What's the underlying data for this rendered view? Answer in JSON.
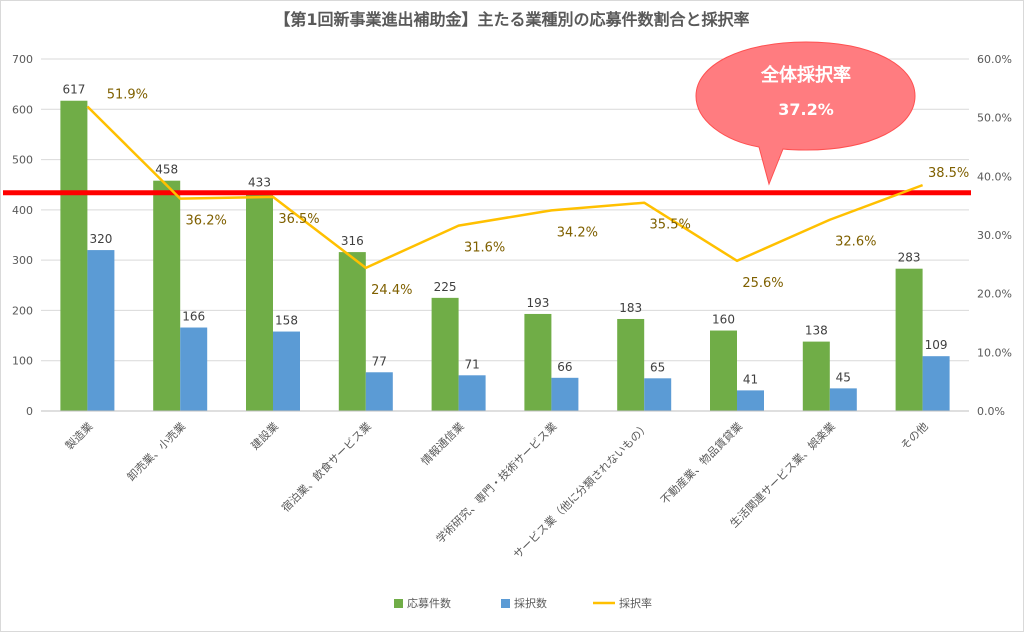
{
  "chart_data": {
    "type": "bar",
    "title": "【第1回新事業進出補助金】主たる業種別の応募件数割合と採択率",
    "categories": [
      "製造業",
      "卸売業、小売業",
      "建設業",
      "宿泊業、飲食サービス業",
      "情報通信業",
      "学術研究、専門・技術サービス業",
      "サービス業（他に分類されないもの）",
      "不動産業、物品賃貸業",
      "生活関連サービス業、娯楽業",
      "その他"
    ],
    "series": [
      {
        "name": "応募件数",
        "kind": "bar",
        "axis": "left",
        "color": "#70ad47",
        "values": [
          617,
          458,
          433,
          316,
          225,
          193,
          183,
          160,
          138,
          283
        ]
      },
      {
        "name": "採択数",
        "kind": "bar",
        "axis": "left",
        "color": "#5b9bd5",
        "values": [
          320,
          166,
          158,
          77,
          71,
          66,
          65,
          41,
          45,
          109
        ]
      },
      {
        "name": "採択率",
        "kind": "line",
        "axis": "right",
        "color": "#ffc000",
        "values": [
          51.9,
          36.2,
          36.5,
          24.4,
          31.6,
          34.2,
          35.5,
          25.6,
          32.6,
          38.5
        ],
        "labels": [
          "51.9%",
          "36.2%",
          "36.5%",
          "24.4%",
          "31.6%",
          "34.2%",
          "35.5%",
          "25.6%",
          "32.6%",
          "38.5%"
        ]
      }
    ],
    "ylim_left": [
      0,
      700
    ],
    "left_ticks": [
      "0",
      "100",
      "200",
      "300",
      "400",
      "500",
      "600",
      "700"
    ],
    "ylim_right": [
      0,
      60
    ],
    "right_ticks": [
      "0.0%",
      "10.0%",
      "20.0%",
      "30.0%",
      "40.0%",
      "50.0%",
      "60.0%"
    ],
    "grid": true,
    "legend_position": "bottom",
    "reference_line": {
      "value": 37.2,
      "axis": "right",
      "color": "#ff0000"
    },
    "annotation": {
      "title": "全体採択率",
      "value": "37.2%",
      "color": "#ff7c80"
    }
  }
}
